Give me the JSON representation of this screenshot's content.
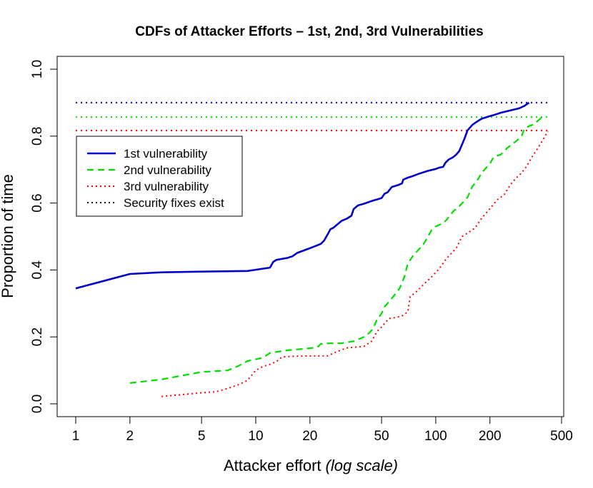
{
  "chart_data": {
    "type": "line",
    "title": "CDFs of Attacker Efforts – 1st, 2nd, 3rd Vulnerabilities",
    "xlabel": "Attacker effort",
    "xlabel_note": "(log scale)",
    "ylabel": "Proportion of time",
    "x_scale": "log",
    "xlim": [
      1,
      500
    ],
    "ylim": [
      0,
      1
    ],
    "x_ticks": [
      1,
      2,
      5,
      10,
      20,
      50,
      100,
      200,
      500
    ],
    "y_ticks": [
      0.0,
      0.2,
      0.4,
      0.6,
      0.8,
      1.0
    ],
    "y_tick_labels": [
      "0.0",
      "0.2",
      "0.4",
      "0.6",
      "0.8",
      "1.0"
    ],
    "x_tick_labels": [
      "1",
      "2",
      "5",
      "10",
      "20",
      "50",
      "100",
      "200",
      "500"
    ],
    "grid": false,
    "legend_position": "top-left",
    "legend": [
      {
        "label": "1st vulnerability",
        "style": "solid",
        "color": "#0000CC"
      },
      {
        "label": "2nd vulnerability",
        "style": "dashed",
        "color": "#00DD00"
      },
      {
        "label": "3rd vulnerability",
        "style": "dotted",
        "color": "#FF0000"
      },
      {
        "label": "Security fixes exist",
        "style": "dotted",
        "color": "#000000"
      }
    ],
    "series": [
      {
        "name": "1st vulnerability",
        "color": "#0000CC",
        "style": "solid",
        "points": [
          [
            1,
            0.345
          ],
          [
            2,
            0.388
          ],
          [
            3,
            0.393
          ],
          [
            5,
            0.395
          ],
          [
            9,
            0.397
          ],
          [
            12,
            0.407
          ],
          [
            12.5,
            0.424
          ],
          [
            13,
            0.43
          ],
          [
            15,
            0.436
          ],
          [
            16,
            0.441
          ],
          [
            17,
            0.451
          ],
          [
            20,
            0.465
          ],
          [
            23,
            0.478
          ],
          [
            24,
            0.488
          ],
          [
            25,
            0.505
          ],
          [
            26,
            0.522
          ],
          [
            27,
            0.526
          ],
          [
            30,
            0.547
          ],
          [
            32,
            0.553
          ],
          [
            34,
            0.562
          ],
          [
            35,
            0.582
          ],
          [
            37,
            0.593
          ],
          [
            40,
            0.598
          ],
          [
            44,
            0.606
          ],
          [
            48,
            0.612
          ],
          [
            50,
            0.615
          ],
          [
            52,
            0.628
          ],
          [
            54,
            0.632
          ],
          [
            57,
            0.648
          ],
          [
            62,
            0.654
          ],
          [
            65,
            0.659
          ],
          [
            66,
            0.67
          ],
          [
            70,
            0.676
          ],
          [
            75,
            0.681
          ],
          [
            80,
            0.687
          ],
          [
            90,
            0.696
          ],
          [
            100,
            0.702
          ],
          [
            105,
            0.706
          ],
          [
            110,
            0.708
          ],
          [
            113,
            0.72
          ],
          [
            118,
            0.73
          ],
          [
            125,
            0.737
          ],
          [
            130,
            0.745
          ],
          [
            135,
            0.755
          ],
          [
            140,
            0.775
          ],
          [
            145,
            0.795
          ],
          [
            150,
            0.817
          ],
          [
            160,
            0.834
          ],
          [
            170,
            0.844
          ],
          [
            180,
            0.852
          ],
          [
            200,
            0.86
          ],
          [
            210,
            0.863
          ],
          [
            230,
            0.87
          ],
          [
            260,
            0.877
          ],
          [
            290,
            0.883
          ],
          [
            310,
            0.89
          ],
          [
            330,
            0.9
          ]
        ]
      },
      {
        "name": "2nd vulnerability",
        "color": "#00DD00",
        "style": "dashed",
        "points": [
          [
            2,
            0.062
          ],
          [
            3,
            0.073
          ],
          [
            5,
            0.095
          ],
          [
            7,
            0.1
          ],
          [
            8,
            0.113
          ],
          [
            9,
            0.128
          ],
          [
            10,
            0.133
          ],
          [
            11,
            0.138
          ],
          [
            12,
            0.152
          ],
          [
            13,
            0.155
          ],
          [
            15,
            0.16
          ],
          [
            20,
            0.166
          ],
          [
            22,
            0.169
          ],
          [
            23,
            0.179
          ],
          [
            26,
            0.181
          ],
          [
            30,
            0.181
          ],
          [
            35,
            0.187
          ],
          [
            40,
            0.2
          ],
          [
            43,
            0.213
          ],
          [
            45,
            0.226
          ],
          [
            47,
            0.25
          ],
          [
            50,
            0.27
          ],
          [
            52,
            0.29
          ],
          [
            58,
            0.32
          ],
          [
            63,
            0.345
          ],
          [
            67,
            0.38
          ],
          [
            70,
            0.42
          ],
          [
            75,
            0.443
          ],
          [
            80,
            0.46
          ],
          [
            85,
            0.475
          ],
          [
            90,
            0.497
          ],
          [
            95,
            0.52
          ],
          [
            100,
            0.53
          ],
          [
            110,
            0.54
          ],
          [
            115,
            0.55
          ],
          [
            125,
            0.575
          ],
          [
            135,
            0.59
          ],
          [
            150,
            0.617
          ],
          [
            160,
            0.65
          ],
          [
            170,
            0.668
          ],
          [
            180,
            0.69
          ],
          [
            200,
            0.718
          ],
          [
            210,
            0.738
          ],
          [
            230,
            0.745
          ],
          [
            250,
            0.765
          ],
          [
            280,
            0.785
          ],
          [
            300,
            0.8
          ],
          [
            310,
            0.82
          ],
          [
            330,
            0.83
          ],
          [
            350,
            0.835
          ],
          [
            390,
            0.857
          ]
        ]
      },
      {
        "name": "3rd vulnerability",
        "color": "#FF0000",
        "style": "dotted",
        "points": [
          [
            3,
            0.022
          ],
          [
            4,
            0.028
          ],
          [
            5,
            0.033
          ],
          [
            6,
            0.036
          ],
          [
            7,
            0.046
          ],
          [
            8,
            0.057
          ],
          [
            9,
            0.07
          ],
          [
            10,
            0.1
          ],
          [
            11,
            0.112
          ],
          [
            12,
            0.118
          ],
          [
            13,
            0.126
          ],
          [
            14,
            0.14
          ],
          [
            16,
            0.142
          ],
          [
            20,
            0.143
          ],
          [
            25,
            0.143
          ],
          [
            28,
            0.155
          ],
          [
            32,
            0.167
          ],
          [
            37,
            0.17
          ],
          [
            40,
            0.172
          ],
          [
            44,
            0.187
          ],
          [
            47,
            0.215
          ],
          [
            50,
            0.23
          ],
          [
            55,
            0.255
          ],
          [
            60,
            0.258
          ],
          [
            65,
            0.263
          ],
          [
            70,
            0.275
          ],
          [
            72,
            0.32
          ],
          [
            78,
            0.335
          ],
          [
            85,
            0.355
          ],
          [
            95,
            0.38
          ],
          [
            105,
            0.405
          ],
          [
            115,
            0.435
          ],
          [
            130,
            0.465
          ],
          [
            140,
            0.5
          ],
          [
            150,
            0.51
          ],
          [
            165,
            0.525
          ],
          [
            180,
            0.555
          ],
          [
            200,
            0.583
          ],
          [
            220,
            0.61
          ],
          [
            240,
            0.625
          ],
          [
            260,
            0.655
          ],
          [
            280,
            0.675
          ],
          [
            300,
            0.69
          ],
          [
            320,
            0.71
          ],
          [
            340,
            0.735
          ],
          [
            360,
            0.755
          ],
          [
            380,
            0.775
          ],
          [
            400,
            0.795
          ],
          [
            420,
            0.815
          ]
        ]
      }
    ],
    "reference_lines": [
      {
        "series": "1st vulnerability",
        "y": 0.9,
        "style": "dotted",
        "color": "#0000CC"
      },
      {
        "series": "2nd vulnerability",
        "y": 0.857,
        "style": "dotted",
        "color": "#00DD00"
      },
      {
        "series": "3rd vulnerability",
        "y": 0.817,
        "style": "dotted",
        "color": "#FF0000"
      }
    ]
  }
}
